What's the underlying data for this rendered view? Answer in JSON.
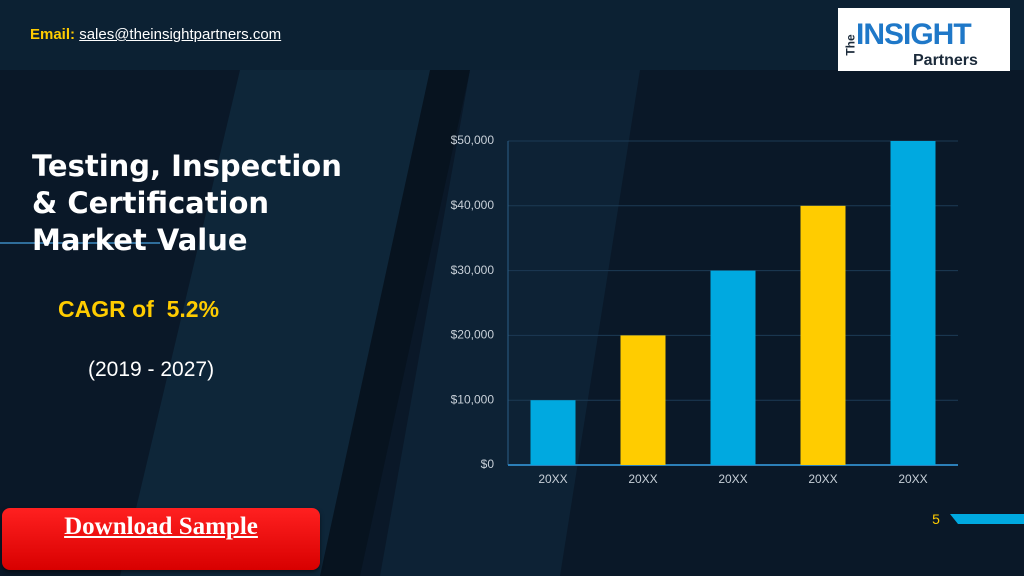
{
  "header": {
    "email_label": "Email:",
    "email": "sales@theinsightpartners.com",
    "logo": {
      "the": "The",
      "insight": "INSIGHT",
      "partners": "Partners"
    }
  },
  "slide": {
    "title_lines": [
      "Testing, Inspection",
      "& Certification",
      "Market Value"
    ],
    "cagr": "CAGR of  5.2%",
    "period": "(2019 - 2027)",
    "page_number": 5
  },
  "button": {
    "label": "Download Sample"
  },
  "chart_data": {
    "type": "bar",
    "categories": [
      "20XX",
      "20XX",
      "20XX",
      "20XX",
      "20XX"
    ],
    "values": [
      10000,
      20000,
      30000,
      40000,
      50000
    ],
    "colors": [
      "#00a9e0",
      "#ffcc00",
      "#00a9e0",
      "#ffcc00",
      "#00a9e0"
    ],
    "ylim": [
      0,
      50000
    ],
    "yticks": [
      {
        "value": 0,
        "label": "$0"
      },
      {
        "value": 10000,
        "label": "$10,000"
      },
      {
        "value": 20000,
        "label": "$20,000"
      },
      {
        "value": 30000,
        "label": "$30,000"
      },
      {
        "value": 40000,
        "label": "$40,000"
      },
      {
        "value": 50000,
        "label": "$50,000"
      }
    ],
    "grid": true
  }
}
